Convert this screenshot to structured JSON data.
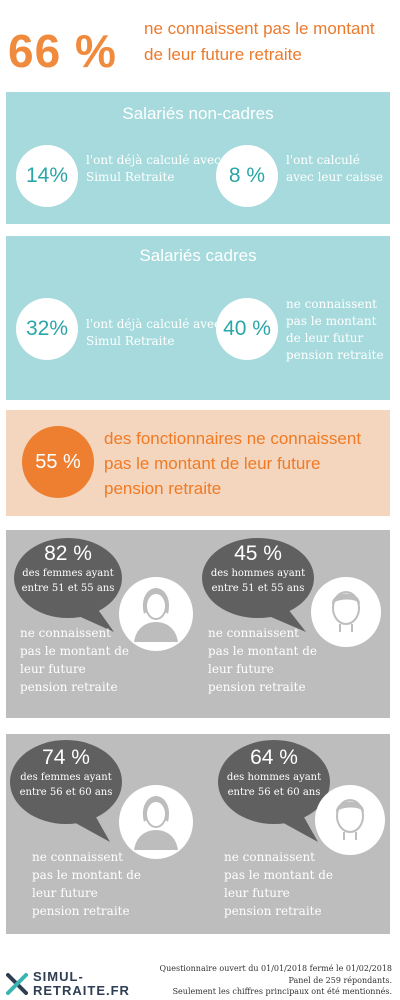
{
  "header": {
    "percent": "66 %",
    "text_line1": "ne connaissent pas le montant",
    "text_line2": "de leur future retraite"
  },
  "non_cadres": {
    "title": "Salariés non-cadres",
    "stat1": {
      "value": "14%",
      "line1": "l'ont déjà calculé avec",
      "line2": "Simul Retraite"
    },
    "stat2": {
      "value": "8 %",
      "line1": "l'ont calculé",
      "line2": "avec leur caisse"
    }
  },
  "cadres": {
    "title": "Salariés  cadres",
    "stat1": {
      "value": "32%",
      "line1": "l'ont déjà calculé avec",
      "line2": "Simul Retraite"
    },
    "stat2": {
      "value": "40 %",
      "line1": "ne connaissent",
      "line2": "pas le montant",
      "line3": "de leur futur",
      "line4": "pension retraite"
    }
  },
  "fonctionnaires": {
    "value": "55 %",
    "line1": "des fonctionnaires ne connaissent",
    "line2": "pas le montant de leur future",
    "line3": "pension retraite"
  },
  "group_51_55": {
    "women": {
      "percent": "82 %",
      "sub1": "des femmes ayant",
      "sub2": "entre 51 et 55 ans"
    },
    "men": {
      "percent": "45 %",
      "sub1": "des hommes ayant",
      "sub2": "entre 51 et 55 ans"
    },
    "caption": {
      "line1": "ne connaissent",
      "line2": "pas le montant de",
      "line3": "leur future",
      "line4": "pension retraite"
    }
  },
  "group_56_60": {
    "women": {
      "percent": "74 %",
      "sub1": "des femmes ayant",
      "sub2": "entre 56 et 60 ans"
    },
    "men": {
      "percent": "64 %",
      "sub1": "des hommes ayant",
      "sub2": "entre 56 et 60 ans"
    },
    "caption": {
      "line1": "ne connaissent",
      "line2": "pas le montant de",
      "line3": "leur future",
      "line4": "pension retraite"
    }
  },
  "footer": {
    "logo_line1": "SIMUL-",
    "logo_line2": "RETRAITE.FR",
    "note1": "Questionnaire ouvert du 01/01/2018 fermé le 01/02/2018",
    "note2": "Panel de 259 répondants.",
    "note3": "Seulement les chiffres principaux ont été mentionnés."
  },
  "colors": {
    "orange": "#ef7f30",
    "teal": "#a6dadc",
    "teal_text": "#2aa6a8",
    "grey": "#bdbdbd",
    "bubble": "#606060",
    "navy": "#2f3e53"
  },
  "icons": [
    "woman-avatar-icon",
    "man-avatar-icon",
    "logo-x-icon"
  ]
}
